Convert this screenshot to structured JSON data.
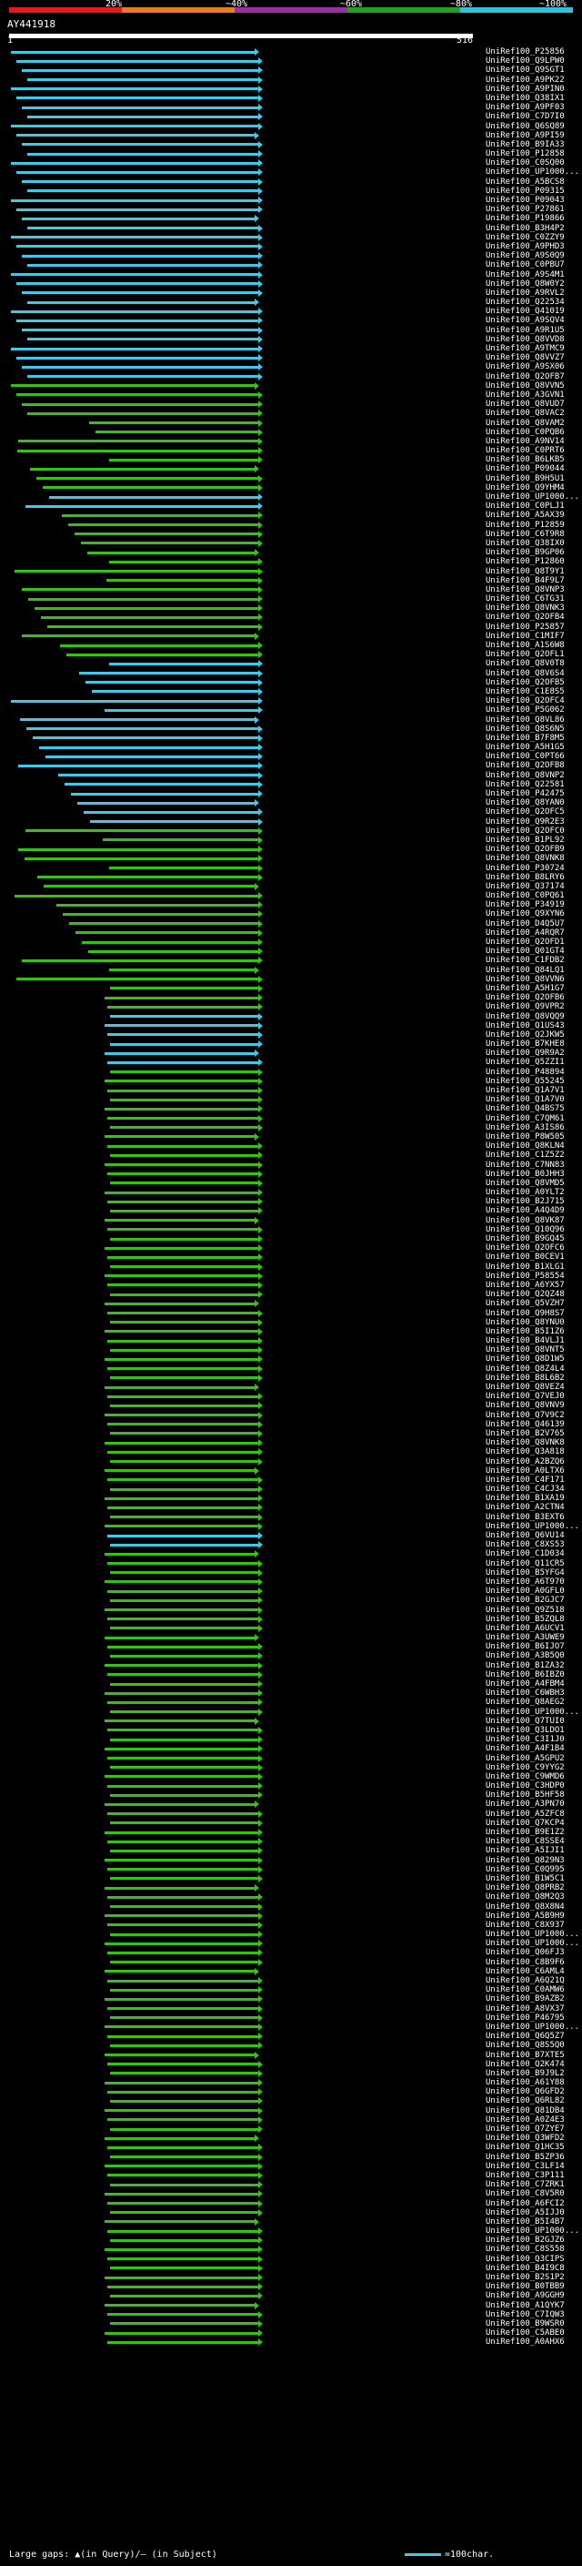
{
  "scale": {
    "labels": [
      "20%",
      "~40%",
      "~60%",
      "~80%",
      "~100%"
    ],
    "colors": [
      "#e8191c",
      "#ee7c1b",
      "#9c2ea8",
      "#22a21d",
      "#2bc5e0"
    ]
  },
  "query_id": "AY441918",
  "axis": {
    "start": "1",
    "end": "516"
  },
  "colors": {
    "high": "#3fc9e8",
    "mid": "#36c214",
    "background": "#000000"
  },
  "hits": [
    "UniRef100_P25856",
    "UniRef100_Q9LPW0",
    "UniRef100_Q9SGT1",
    "UniRef100_A9PK22",
    "UniRef100_A9PIN0",
    "UniRef100_Q38IX1",
    "UniRef100_A9PF03",
    "UniRef100_C7D7I0",
    "UniRef100_Q6SQ89",
    "UniRef100_A9PI59",
    "UniRef100_B9IA33",
    "UniRef100_P12858",
    "UniRef100_C0SQ00",
    "UniRef100_UP1000...",
    "UniRef100_A5BCS8",
    "UniRef100_P09315",
    "UniRef100_P09043",
    "UniRef100_P27861",
    "UniRef100_P19866",
    "UniRef100_B3H4P2",
    "UniRef100_C0ZZY9",
    "UniRef100_A9PHD3",
    "UniRef100_A9S0Q9",
    "UniRef100_C0PBU7",
    "UniRef100_A9S4M1",
    "UniRef100_Q8W0Y2",
    "UniRef100_A9RVL2",
    "UniRef100_Q22534",
    "UniRef100_Q41019",
    "UniRef100_A9SQV4",
    "UniRef100_A9R1U5",
    "UniRef100_Q8VVD8",
    "UniRef100_A9TMC9",
    "UniRef100_Q8VVZ7",
    "UniRef100_A9SX06",
    "UniRef100_Q2OFB7",
    "UniRef100_Q8VVN5",
    "UniRef100_A3GVN1",
    "UniRef100_Q8VUD7",
    "UniRef100_Q8VAC2",
    "UniRef100_Q8VAM2",
    "UniRef100_C0PQB6",
    "UniRef100_A9NV14",
    "UniRef100_C0PRT6",
    "UniRef100_B6LKB5",
    "UniRef100_P09044",
    "UniRef100_B9H5U1",
    "UniRef100_Q9YHM4",
    "UniRef100_UP1000...",
    "UniRef100_C0PLJ1",
    "UniRef100_A5AX39",
    "UniRef100_P12859",
    "UniRef100_C6T9R8",
    "UniRef100_Q38IX0",
    "UniRef100_B9GP06",
    "UniRef100_P12860",
    "UniRef100_Q8T9Y1",
    "UniRef100_B4F9L7",
    "UniRef100_Q8VNP3",
    "UniRef100_C6TG31",
    "UniRef100_Q8VNK3",
    "UniRef100_Q2OFB4",
    "UniRef100_P25857",
    "UniRef100_C1MIF7",
    "UniRef100_A1S6W8",
    "UniRef100_Q2OFL1",
    "UniRef100_Q8V0T8",
    "UniRef100_Q8V6S4",
    "UniRef100_Q2OFB5",
    "UniRef100_C1E8S5",
    "UniRef100_Q2OFC4",
    "UniRef100_P5G062",
    "UniRef100_Q8VL86",
    "UniRef100_Q8S6N5",
    "UniRef100_B7F8M5",
    "UniRef100_A5H1G5",
    "UniRef100_C0PT66",
    "UniRef100_Q2OFB8",
    "UniRef100_Q8VNP2",
    "UniRef100_Q22581",
    "UniRef100_P42475",
    "UniRef100_Q8YAN0",
    "UniRef100_Q2OFC5",
    "UniRef100_Q9R2E3",
    "UniRef100_Q2OFC0",
    "UniRef100_B1PL92",
    "UniRef100_Q2OFB9",
    "UniRef100_Q8VNK8",
    "UniRef100_P30724",
    "UniRef100_B8LRY6",
    "UniRef100_Q37174",
    "UniRef100_C0PQ61",
    "UniRef100_P34919",
    "UniRef100_Q9XYN6",
    "UniRef100_D4Q5U7",
    "UniRef100_A4RQR7",
    "UniRef100_Q2OFD1",
    "UniRef100_Q01GT4",
    "UniRef100_C1FDB2",
    "UniRef100_Q84LQ1",
    "UniRef100_Q8VVN6",
    "UniRef100_A5H1G7",
    "UniRef100_Q2OFB6",
    "UniRef100_Q9VPR2",
    "UniRef100_Q8VQQ9",
    "UniRef100_Q1US43",
    "UniRef100_Q2JKW5",
    "UniRef100_B7KHE8",
    "UniRef100_Q9R9A2",
    "UniRef100_Q5ZZI1",
    "UniRef100_P48894",
    "UniRef100_Q55245",
    "UniRef100_Q1A7V1",
    "UniRef100_Q1A7V0",
    "UniRef100_Q4BS75",
    "UniRef100_C7QM61",
    "UniRef100_A3IS86",
    "UniRef100_P8W505",
    "UniRef100_Q8KLN4",
    "UniRef100_C1Z5Z2",
    "UniRef100_C7NN83",
    "UniRef100_B0JHH3",
    "UniRef100_Q8VMD5",
    "UniRef100_A0YLT2",
    "UniRef100_B2J715",
    "UniRef100_A4Q4D9",
    "UniRef100_Q8VK87",
    "UniRef100_Q10Q96",
    "UniRef100_B9GQ45",
    "UniRef100_Q2OFC6",
    "UniRef100_B0CEV1",
    "UniRef100_B1XLG1",
    "UniRef100_P58554",
    "UniRef100_A6YX57",
    "UniRef100_Q2QZ48",
    "UniRef100_Q5VZH7",
    "UniRef100_Q9H8S7",
    "UniRef100_Q8YNU0",
    "UniRef100_B5I1Z6",
    "UniRef100_B4VLJ1",
    "UniRef100_Q8VNT5",
    "UniRef100_Q8D1W5",
    "UniRef100_Q8Z4L4",
    "UniRef100_B8L6B2",
    "UniRef100_Q8VEZ4",
    "UniRef100_Q7VEJ0",
    "UniRef100_Q8VNV9",
    "UniRef100_Q7V9C2",
    "UniRef100_Q46139",
    "UniRef100_B2V765",
    "UniRef100_Q8VNK8",
    "UniRef100_Q3A818",
    "UniRef100_A2BZQ6",
    "UniRef100_A0LTX6",
    "UniRef100_C4F171",
    "UniRef100_C4CJ34",
    "UniRef100_B1XA19",
    "UniRef100_A2CTN4",
    "UniRef100_B3EXT6",
    "UniRef100_UP1000...",
    "UniRef100_Q6VU14",
    "UniRef100_C8XS53",
    "UniRef100_C1D034",
    "UniRef100_Q11CR5",
    "UniRef100_B5YFG4",
    "UniRef100_A6T970",
    "UniRef100_A0GFL0",
    "UniRef100_B2GJC7",
    "UniRef100_Q9Z518",
    "UniRef100_B5ZQL8",
    "UniRef100_A6UCV1",
    "UniRef100_A3UWE9",
    "UniRef100_B6IJO7",
    "UniRef100_A3B5Q0",
    "UniRef100_B1ZA32",
    "UniRef100_B6IBZ0",
    "UniRef100_A4FBM4",
    "UniRef100_C6WBH3",
    "UniRef100_Q8AEG2",
    "UniRef100_UP1000...",
    "UniRef100_Q7TUI0",
    "UniRef100_Q3LDO1",
    "UniRef100_C3I1J0",
    "UniRef100_A4F1B4",
    "UniRef100_A5GPU2",
    "UniRef100_C9YYG2",
    "UniRef100_C9WMD6",
    "UniRef100_C3HDP0",
    "UniRef100_B5HF58",
    "UniRef100_A3PN70",
    "UniRef100_A5ZFC8",
    "UniRef100_Q7KCP4",
    "UniRef100_B9E1Z2",
    "UniRef100_C8SSE4",
    "UniRef100_A5IJI1",
    "UniRef100_Q829N3",
    "UniRef100_C0Q995",
    "UniRef100_B1W5C1",
    "UniRef100_Q8PRB2",
    "UniRef100_Q8M2Q3",
    "UniRef100_Q8X8N4",
    "UniRef100_A5B9H9",
    "UniRef100_C8X937",
    "UniRef100_UP1000...",
    "UniRef100_UP1000...",
    "UniRef100_Q06FJ3",
    "UniRef100_C8B9F6",
    "UniRef100_C6AML4",
    "UniRef100_A6Q21Q",
    "UniRef100_C0AMW6",
    "UniRef100_B9AZB2",
    "UniRef100_A8VX37",
    "UniRef100_P46795",
    "UniRef100_UP1000...",
    "UniRef100_Q6Q5Z7",
    "UniRef100_Q8S5Q0",
    "UniRef100_B7XTE5",
    "UniRef100_Q2K474",
    "UniRef100_B9J9L2",
    "UniRef100_A61Y88",
    "UniRef100_Q6GFD2",
    "UniRef100_Q6RL82",
    "UniRef100_Q81DB4",
    "UniRef100_A0Z4E3",
    "UniRef100_Q7ZYE7",
    "UniRef100_Q3WFD2",
    "UniRef100_Q1HC35",
    "UniRef100_B5ZP36",
    "UniRef100_C3LF14",
    "UniRef100_C3P111",
    "UniRef100_C7ZRK1",
    "UniRef100_C8V5R0",
    "UniRef100_A6FCI2",
    "UniRef100_A5IJJ0",
    "UniRef100_B5I4B7",
    "UniRef100_UP1000...",
    "UniRef100_B2GJZ6",
    "UniRef100_C8S558",
    "UniRef100_Q3CIPS",
    "UniRef100_B4I9C8",
    "UniRef100_B2S1P2",
    "UniRef100_B0TBB9",
    "UniRef100_A9GGH9",
    "UniRef100_A1QYK7",
    "UniRef100_C7IQW3",
    "UniRef100_B9WSR0",
    "UniRef100_C5ABE0",
    "UniRef100_A0AHX6"
  ],
  "footer": {
    "gaps": "Large gaps: ▲(in Query)/– (in Subject)",
    "legend": "=100char."
  }
}
